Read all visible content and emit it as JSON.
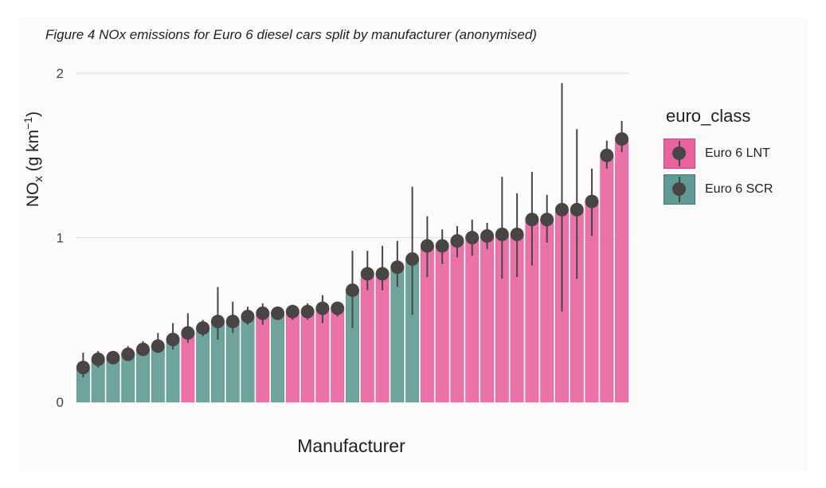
{
  "caption": "Figure 4 NOx emissions for Euro 6 diesel cars split by manufacturer (anonymised)",
  "chart_data": {
    "type": "bar",
    "xlabel": "Manufacturer",
    "ylabel": "NOx (g km−1)",
    "ylim": [
      0,
      2
    ],
    "yticks": [
      0,
      1,
      2
    ],
    "grid": true,
    "legend": {
      "title": "euro_class",
      "placement": "right",
      "entries": [
        {
          "name": "Euro 6 LNT",
          "color": "#e8639e"
        },
        {
          "name": "Euro 6 SCR",
          "color": "#5f9a94"
        }
      ]
    },
    "points": [
      {
        "class": "SCR",
        "value": 0.21,
        "lo": 0.15,
        "hi": 0.3
      },
      {
        "class": "SCR",
        "value": 0.26,
        "lo": 0.21,
        "hi": 0.31
      },
      {
        "class": "SCR",
        "value": 0.27,
        "lo": 0.23,
        "hi": 0.31
      },
      {
        "class": "SCR",
        "value": 0.29,
        "lo": 0.25,
        "hi": 0.34
      },
      {
        "class": "SCR",
        "value": 0.32,
        "lo": 0.28,
        "hi": 0.37
      },
      {
        "class": "SCR",
        "value": 0.34,
        "lo": 0.3,
        "hi": 0.42
      },
      {
        "class": "SCR",
        "value": 0.38,
        "lo": 0.32,
        "hi": 0.48
      },
      {
        "class": "LNT",
        "value": 0.42,
        "lo": 0.36,
        "hi": 0.54
      },
      {
        "class": "SCR",
        "value": 0.45,
        "lo": 0.4,
        "hi": 0.5
      },
      {
        "class": "SCR",
        "value": 0.49,
        "lo": 0.38,
        "hi": 0.7
      },
      {
        "class": "SCR",
        "value": 0.49,
        "lo": 0.42,
        "hi": 0.61
      },
      {
        "class": "SCR",
        "value": 0.52,
        "lo": 0.47,
        "hi": 0.58
      },
      {
        "class": "LNT",
        "value": 0.54,
        "lo": 0.47,
        "hi": 0.6
      },
      {
        "class": "SCR",
        "value": 0.54,
        "lo": 0.5,
        "hi": 0.58
      },
      {
        "class": "LNT",
        "value": 0.55,
        "lo": 0.5,
        "hi": 0.59
      },
      {
        "class": "LNT",
        "value": 0.55,
        "lo": 0.5,
        "hi": 0.6
      },
      {
        "class": "LNT",
        "value": 0.57,
        "lo": 0.48,
        "hi": 0.65
      },
      {
        "class": "LNT",
        "value": 0.57,
        "lo": 0.52,
        "hi": 0.61
      },
      {
        "class": "SCR",
        "value": 0.68,
        "lo": 0.45,
        "hi": 0.92
      },
      {
        "class": "LNT",
        "value": 0.78,
        "lo": 0.68,
        "hi": 0.92
      },
      {
        "class": "LNT",
        "value": 0.78,
        "lo": 0.68,
        "hi": 0.95
      },
      {
        "class": "SCR",
        "value": 0.82,
        "lo": 0.7,
        "hi": 0.98
      },
      {
        "class": "SCR",
        "value": 0.87,
        "lo": 0.53,
        "hi": 1.31
      },
      {
        "class": "LNT",
        "value": 0.95,
        "lo": 0.76,
        "hi": 1.13
      },
      {
        "class": "LNT",
        "value": 0.95,
        "lo": 0.84,
        "hi": 1.05
      },
      {
        "class": "LNT",
        "value": 0.98,
        "lo": 0.88,
        "hi": 1.07
      },
      {
        "class": "LNT",
        "value": 1.0,
        "lo": 0.89,
        "hi": 1.11
      },
      {
        "class": "LNT",
        "value": 1.01,
        "lo": 0.93,
        "hi": 1.09
      },
      {
        "class": "LNT",
        "value": 1.02,
        "lo": 0.75,
        "hi": 1.37
      },
      {
        "class": "LNT",
        "value": 1.02,
        "lo": 0.76,
        "hi": 1.27
      },
      {
        "class": "LNT",
        "value": 1.11,
        "lo": 0.83,
        "hi": 1.4
      },
      {
        "class": "LNT",
        "value": 1.11,
        "lo": 0.97,
        "hi": 1.26
      },
      {
        "class": "LNT",
        "value": 1.17,
        "lo": 0.55,
        "hi": 1.94
      },
      {
        "class": "LNT",
        "value": 1.17,
        "lo": 0.75,
        "hi": 1.66
      },
      {
        "class": "LNT",
        "value": 1.22,
        "lo": 1.01,
        "hi": 1.42
      },
      {
        "class": "LNT",
        "value": 1.5,
        "lo": 1.42,
        "hi": 1.59
      },
      {
        "class": "LNT",
        "value": 1.6,
        "lo": 1.52,
        "hi": 1.71
      }
    ]
  }
}
